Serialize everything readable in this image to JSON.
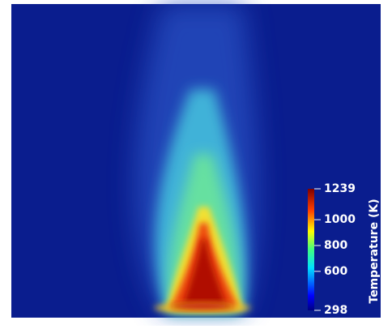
{
  "colorbar": {
    "title": "Temperature (K)",
    "range": [
      298,
      1239
    ],
    "ticks": [
      298,
      600,
      800,
      1000,
      1239
    ]
  }
}
